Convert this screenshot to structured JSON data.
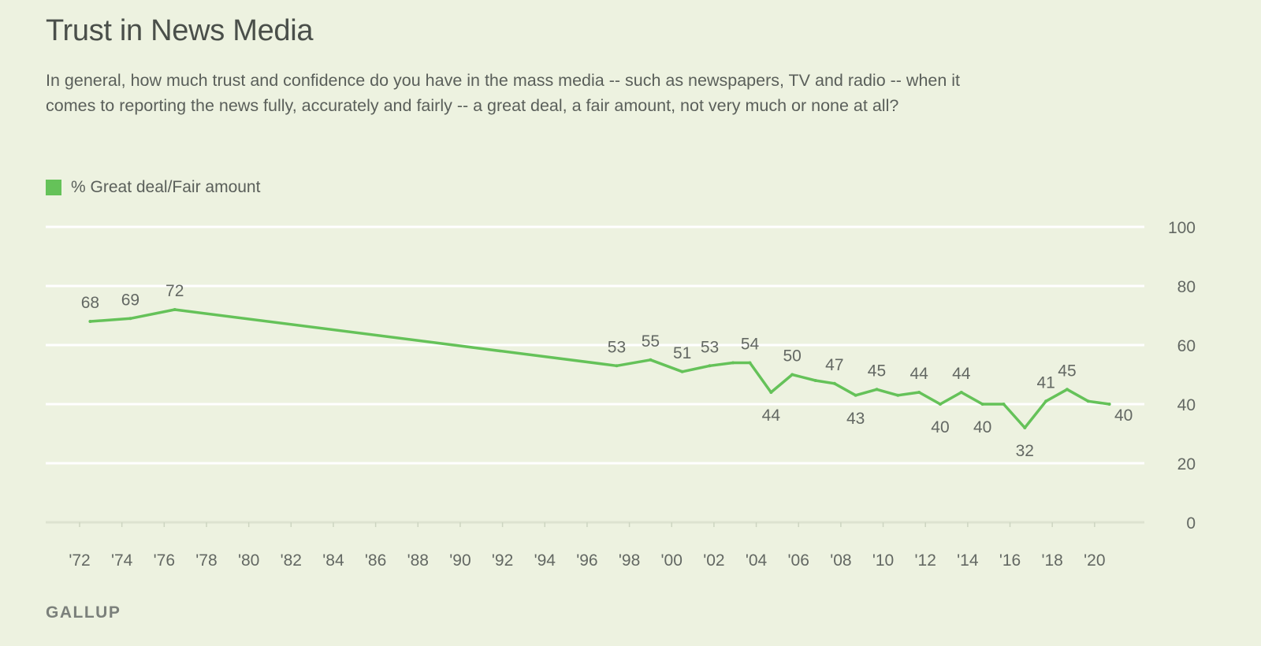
{
  "header": {
    "title": "Trust in News Media",
    "subtitle": "In general, how much trust and confidence do you have in the mass media -- such as newspapers, TV and radio -- when it comes to reporting the news fully, accurately and fairly -- a great deal, a fair amount, not very much or none at all?"
  },
  "legend": {
    "label": "% Great deal/Fair amount",
    "color": "#65c259"
  },
  "footer": {
    "source": "GALLUP"
  },
  "chart_data": {
    "type": "line",
    "title": "Trust in News Media",
    "xlabel": "",
    "ylabel": "",
    "ylim": [
      0,
      100
    ],
    "yticks": [
      0,
      20,
      40,
      60,
      80,
      100
    ],
    "xlim": [
      1971,
      2022
    ],
    "xticks": [
      {
        "value": 1972,
        "label": "'72"
      },
      {
        "value": 1974,
        "label": "'74"
      },
      {
        "value": 1976,
        "label": "'76"
      },
      {
        "value": 1978,
        "label": "'78"
      },
      {
        "value": 1980,
        "label": "'80"
      },
      {
        "value": 1982,
        "label": "'82"
      },
      {
        "value": 1984,
        "label": "'84"
      },
      {
        "value": 1986,
        "label": "'86"
      },
      {
        "value": 1988,
        "label": "'88"
      },
      {
        "value": 1990,
        "label": "'90"
      },
      {
        "value": 1992,
        "label": "'92"
      },
      {
        "value": 1994,
        "label": "'94"
      },
      {
        "value": 1996,
        "label": "'96"
      },
      {
        "value": 1998,
        "label": "'98"
      },
      {
        "value": 2000,
        "label": "'00"
      },
      {
        "value": 2002,
        "label": "'02"
      },
      {
        "value": 2004,
        "label": "'04"
      },
      {
        "value": 2006,
        "label": "'06"
      },
      {
        "value": 2008,
        "label": "'08"
      },
      {
        "value": 2010,
        "label": "'10"
      },
      {
        "value": 2012,
        "label": "'12"
      },
      {
        "value": 2014,
        "label": "'14"
      },
      {
        "value": 2016,
        "label": "'16"
      },
      {
        "value": 2018,
        "label": "'18"
      },
      {
        "value": 2020,
        "label": "'20"
      }
    ],
    "grid": true,
    "legend_position": "top-left",
    "series": [
      {
        "name": "% Great deal/Fair amount",
        "color": "#65c259",
        "points": [
          {
            "x": 1972.5,
            "y": 68,
            "label": "68",
            "label_pos": "above"
          },
          {
            "x": 1974.4,
            "y": 69,
            "label": "69",
            "label_pos": "above"
          },
          {
            "x": 1976.5,
            "y": 72,
            "label": "72",
            "label_pos": "above"
          },
          {
            "x": 1997.4,
            "y": 53,
            "label": "53",
            "label_pos": "above"
          },
          {
            "x": 1999.0,
            "y": 55,
            "label": "55",
            "label_pos": "above"
          },
          {
            "x": 2000.5,
            "y": 51,
            "label": "51",
            "label_pos": "above"
          },
          {
            "x": 2001.8,
            "y": 53,
            "label": "53",
            "label_pos": "above"
          },
          {
            "x": 2002.9,
            "y": 54,
            "label": "",
            "label_pos": "none"
          },
          {
            "x": 2003.7,
            "y": 54,
            "label": "54",
            "label_pos": "above"
          },
          {
            "x": 2004.7,
            "y": 44,
            "label": "44",
            "label_pos": "below"
          },
          {
            "x": 2005.7,
            "y": 50,
            "label": "50",
            "label_pos": "above"
          },
          {
            "x": 2006.8,
            "y": 48,
            "label": "",
            "label_pos": "none"
          },
          {
            "x": 2007.7,
            "y": 47,
            "label": "47",
            "label_pos": "above"
          },
          {
            "x": 2008.7,
            "y": 43,
            "label": "43",
            "label_pos": "below"
          },
          {
            "x": 2009.7,
            "y": 45,
            "label": "45",
            "label_pos": "above"
          },
          {
            "x": 2010.7,
            "y": 43,
            "label": "",
            "label_pos": "none"
          },
          {
            "x": 2011.7,
            "y": 44,
            "label": "44",
            "label_pos": "above"
          },
          {
            "x": 2012.7,
            "y": 40,
            "label": "40",
            "label_pos": "below"
          },
          {
            "x": 2013.7,
            "y": 44,
            "label": "44",
            "label_pos": "above"
          },
          {
            "x": 2014.7,
            "y": 40,
            "label": "40",
            "label_pos": "below"
          },
          {
            "x": 2015.7,
            "y": 40,
            "label": "",
            "label_pos": "none"
          },
          {
            "x": 2016.7,
            "y": 32,
            "label": "32",
            "label_pos": "below"
          },
          {
            "x": 2017.7,
            "y": 41,
            "label": "41",
            "label_pos": "above"
          },
          {
            "x": 2018.7,
            "y": 45,
            "label": "45",
            "label_pos": "above"
          },
          {
            "x": 2019.7,
            "y": 41,
            "label": "",
            "label_pos": "none"
          },
          {
            "x": 2020.7,
            "y": 40,
            "label": "40",
            "label_pos": "below-right"
          }
        ]
      }
    ]
  }
}
